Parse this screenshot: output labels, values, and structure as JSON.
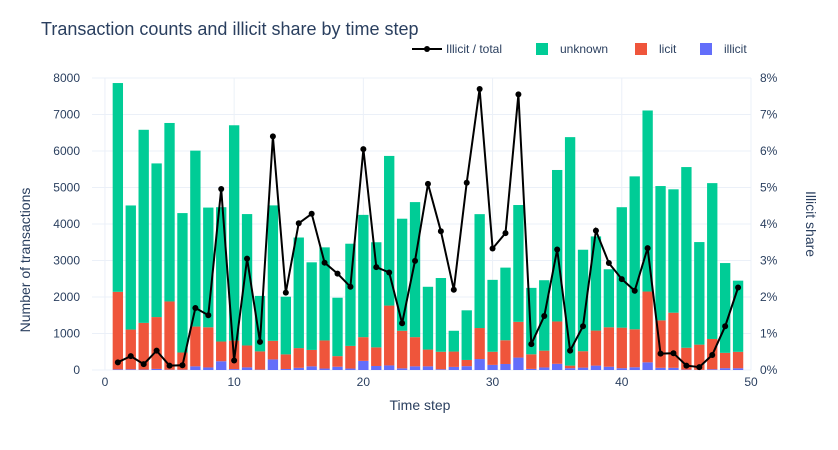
{
  "chart_data": {
    "type": "bar",
    "title": "Transaction counts and illicit share by time step",
    "xlabel": "Time step",
    "ylabel": "Number of transactions",
    "y2label": "Illicit share",
    "xlim": [
      -1,
      50
    ],
    "ylim": [
      0,
      8000
    ],
    "y2lim": [
      0,
      0.08
    ],
    "xticks": [
      0,
      10,
      20,
      30,
      40,
      50
    ],
    "yticks": [
      0,
      1000,
      2000,
      3000,
      4000,
      5000,
      6000,
      7000,
      8000
    ],
    "y2ticks": [
      0,
      0.01,
      0.02,
      0.03,
      0.04,
      0.05,
      0.06,
      0.07,
      0.08
    ],
    "y2ticklabels": [
      "0%",
      "1%",
      "2%",
      "3%",
      "4%",
      "5%",
      "6%",
      "7%",
      "8%"
    ],
    "barmode": "stack",
    "grid": true,
    "legend_position": "top-right, horizontal",
    "x": [
      1,
      2,
      3,
      4,
      5,
      6,
      7,
      8,
      9,
      10,
      11,
      12,
      13,
      14,
      15,
      16,
      17,
      18,
      19,
      20,
      21,
      22,
      23,
      24,
      25,
      26,
      27,
      28,
      29,
      30,
      31,
      32,
      33,
      34,
      35,
      36,
      37,
      38,
      39,
      40,
      41,
      42,
      43,
      44,
      45,
      46,
      47,
      48,
      49
    ],
    "series": [
      {
        "name": "illicit",
        "color": "#636efa",
        "values": [
          17,
          18,
          11,
          30,
          8,
          9,
          100,
          70,
          240,
          25,
          72,
          10,
          290,
          28,
          60,
          100,
          40,
          90,
          40,
          250,
          110,
          125,
          45,
          100,
          100,
          20,
          85,
          105,
          300,
          140,
          165,
          340,
          30,
          70,
          170,
          50,
          65,
          120,
          90,
          50,
          75,
          210,
          60,
          60,
          10,
          5,
          20,
          50,
          48
        ]
      },
      {
        "name": "licit",
        "color": "#ef553b",
        "values": [
          2125,
          1090,
          1280,
          1420,
          1870,
          470,
          1090,
          1100,
          540,
          780,
          600,
          500,
          510,
          400,
          540,
          450,
          770,
          290,
          620,
          650,
          510,
          1640,
          1030,
          800,
          460,
          480,
          420,
          170,
          850,
          360,
          650,
          980,
          400,
          460,
          1160,
          70,
          450,
          960,
          1080,
          1110,
          1040,
          1940,
          1300,
          1510,
          600,
          690,
          830,
          420,
          450
        ]
      },
      {
        "name": "unknown",
        "color": "#00cc96",
        "values": [
          5720,
          3400,
          5290,
          4210,
          4890,
          3820,
          4820,
          3280,
          3680,
          5900,
          3600,
          1520,
          3710,
          1580,
          3030,
          2400,
          2550,
          1600,
          2800,
          3350,
          2880,
          4100,
          3070,
          3700,
          1720,
          2020,
          570,
          1360,
          3120,
          1970,
          1990,
          3200,
          1820,
          1930,
          4150,
          6260,
          2780,
          2580,
          1590,
          3300,
          4190,
          4960,
          3680,
          3380,
          4950,
          2810,
          4270,
          2460,
          1950
        ]
      },
      {
        "name": "Illicit / total",
        "color": "#000000",
        "type": "line",
        "values": [
          0.0021,
          0.0038,
          0.0016,
          0.0053,
          0.0012,
          0.0013,
          0.017,
          0.015,
          0.0496,
          0.0026,
          0.0305,
          0.0077,
          0.064,
          0.0212,
          0.0402,
          0.0428,
          0.0294,
          0.0264,
          0.0228,
          0.0605,
          0.0282,
          0.0267,
          0.0128,
          0.0299,
          0.051,
          0.038,
          0.022,
          0.0513,
          0.077,
          0.0333,
          0.0375,
          0.0755,
          0.0071,
          0.0148,
          0.033,
          0.0053,
          0.012,
          0.0382,
          0.0293,
          0.0249,
          0.0217,
          0.0334,
          0.0045,
          0.0046,
          0.0012,
          0.0008,
          0.0041,
          0.012,
          0.0226
        ]
      }
    ],
    "legend": [
      "Illicit / total",
      "unknown",
      "licit",
      "illicit"
    ]
  }
}
